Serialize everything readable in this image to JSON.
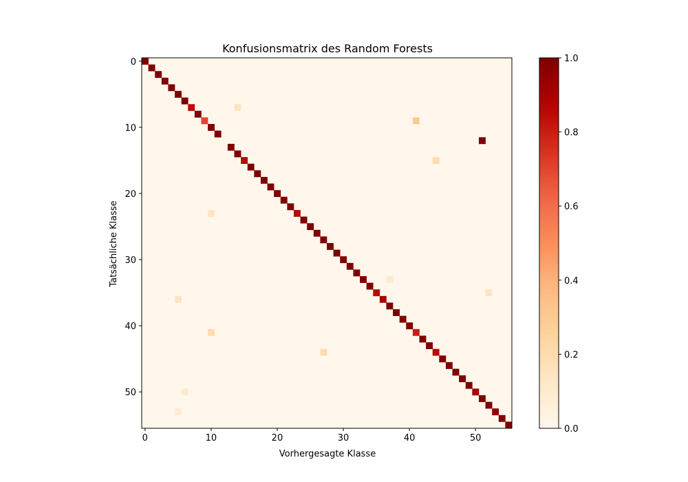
{
  "chart_data": {
    "type": "heatmap",
    "title": "Konfusionsmatrix des Random Forests",
    "xlabel": "Vorhergesagte Klasse",
    "ylabel": "Tatsächliche Klasse",
    "n_classes": 56,
    "x_ticks": [
      0,
      10,
      20,
      30,
      40,
      50
    ],
    "y_ticks": [
      0,
      10,
      20,
      30,
      40,
      50
    ],
    "colormap": "OrRd",
    "vmin": 0.0,
    "vmax": 1.0,
    "colorbar_ticks": [
      "0.0",
      "0.2",
      "0.4",
      "0.6",
      "0.8",
      "1.0"
    ],
    "diagonal": [
      1,
      1,
      1,
      1,
      1,
      1,
      1,
      0.85,
      1,
      0.7,
      1,
      1,
      0,
      1,
      1,
      0.85,
      1,
      1,
      1,
      1,
      1,
      1,
      1,
      0.85,
      1,
      1,
      1,
      1,
      1,
      1,
      1,
      1,
      1,
      1,
      1,
      0.85,
      0.9,
      1,
      1,
      1,
      1,
      0.8,
      1,
      1,
      0.85,
      1,
      1,
      1,
      1,
      1,
      0.9,
      1,
      1,
      0.95,
      1,
      1
    ],
    "off_diagonal": [
      {
        "row": 7,
        "col": 14,
        "value": 0.15
      },
      {
        "row": 9,
        "col": 41,
        "value": 0.3
      },
      {
        "row": 12,
        "col": 51,
        "value": 1.0
      },
      {
        "row": 15,
        "col": 44,
        "value": 0.2
      },
      {
        "row": 23,
        "col": 10,
        "value": 0.15
      },
      {
        "row": 33,
        "col": 37,
        "value": 0.1
      },
      {
        "row": 35,
        "col": 52,
        "value": 0.15
      },
      {
        "row": 36,
        "col": 5,
        "value": 0.15
      },
      {
        "row": 41,
        "col": 10,
        "value": 0.2
      },
      {
        "row": 44,
        "col": 27,
        "value": 0.2
      },
      {
        "row": 50,
        "col": 6,
        "value": 0.1
      },
      {
        "row": 53,
        "col": 5,
        "value": 0.1
      }
    ]
  }
}
